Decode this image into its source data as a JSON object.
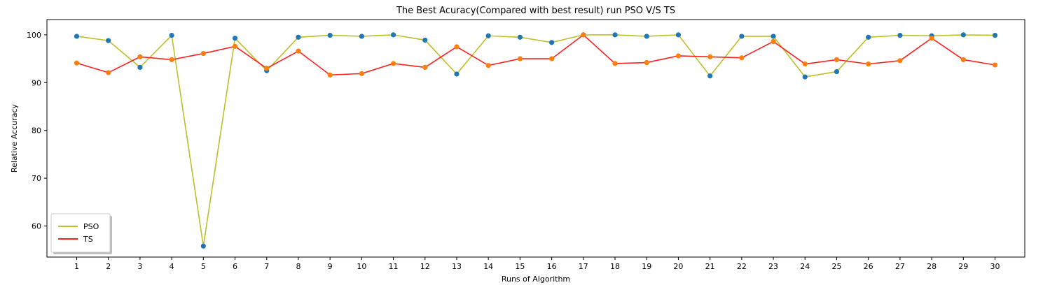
{
  "chart_data": {
    "type": "line",
    "title": "The Best Acuracy(Compared with best result) run PSO V/S TS",
    "xlabel": "Runs of Algorithm",
    "ylabel": "Relative Accuracy",
    "x": [
      1,
      2,
      3,
      4,
      5,
      6,
      7,
      8,
      9,
      10,
      11,
      12,
      13,
      14,
      15,
      16,
      17,
      18,
      19,
      20,
      21,
      22,
      23,
      24,
      25,
      26,
      27,
      28,
      29,
      30
    ],
    "xlim": [
      0.06,
      30.94
    ],
    "ylim": [
      53.5,
      103.2
    ],
    "yticks": [
      60,
      70,
      80,
      90,
      100
    ],
    "grid": false,
    "legend_location": "lower-left",
    "series": [
      {
        "name": "PSO",
        "line_color": "#bfbf2a",
        "marker_color": "#1f77b4",
        "values": [
          99.7,
          98.8,
          93.2,
          99.9,
          55.8,
          99.3,
          92.5,
          99.5,
          99.9,
          99.7,
          100.0,
          98.9,
          91.8,
          99.8,
          99.5,
          98.4,
          100.0,
          100.0,
          99.7,
          100.0,
          91.4,
          99.7,
          99.7,
          91.2,
          92.3,
          99.5,
          99.9,
          99.8,
          100.0,
          99.9
        ]
      },
      {
        "name": "TS",
        "line_color": "#ff2020",
        "marker_color": "#ff7f0e",
        "values": [
          94.1,
          92.1,
          95.4,
          94.8,
          96.1,
          97.6,
          93.0,
          96.6,
          91.6,
          91.9,
          94.0,
          93.2,
          97.5,
          93.6,
          95.0,
          95.0,
          100.0,
          94.0,
          94.2,
          95.6,
          95.4,
          95.2,
          98.6,
          93.9,
          94.8,
          93.9,
          94.6,
          99.3,
          94.8,
          93.7
        ]
      }
    ]
  }
}
